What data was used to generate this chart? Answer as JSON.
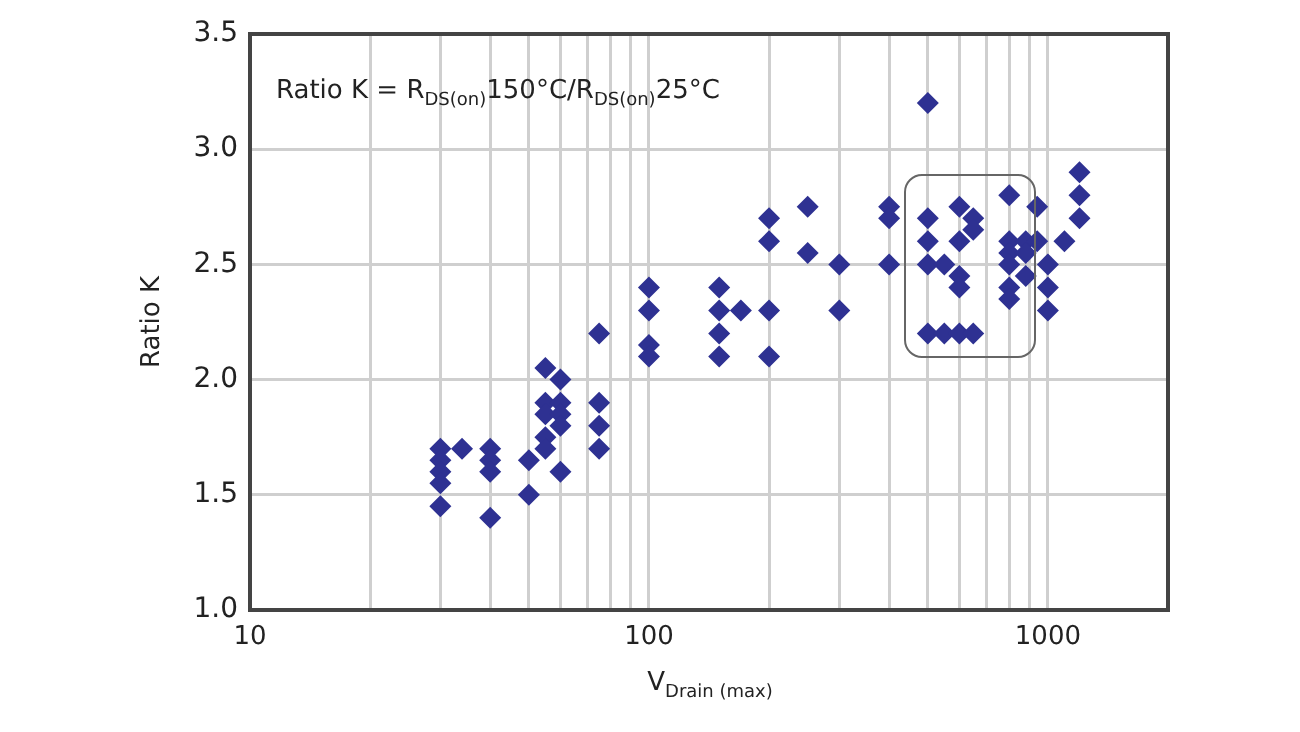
{
  "chart_data": {
    "type": "scatter",
    "xlabel": "V$_{Drain (max)}$",
    "ylabel": "Ratio K",
    "annotations": [
      "Ratio K = R$_{DS(on)}$150°C/R$_{DS(on)}$25°C"
    ],
    "log": "x",
    "grid": true,
    "legend": false,
    "marker": "diamond",
    "xlim": [
      10,
      2000
    ],
    "ylim": [
      1.0,
      3.5
    ],
    "xticks": [
      10,
      {
        "value": 20,
        "label": null
      },
      {
        "value": 30,
        "label": null
      },
      {
        "value": 40,
        "label": null
      },
      {
        "value": 50,
        "label": null
      },
      {
        "value": 60,
        "label": null
      },
      {
        "value": 70,
        "label": null
      },
      {
        "value": 80,
        "label": null
      },
      {
        "value": 90,
        "label": null
      },
      100,
      {
        "value": 200,
        "label": null
      },
      {
        "value": 300,
        "label": null
      },
      {
        "value": 400,
        "label": null
      },
      {
        "value": 500,
        "label": null
      },
      {
        "value": 600,
        "label": null
      },
      {
        "value": 700,
        "label": null
      },
      {
        "value": 800,
        "label": null
      },
      {
        "value": 900,
        "label": null
      },
      1000
    ],
    "yticks": [
      {
        "value": 1.0,
        "label": "1.0"
      },
      1.5,
      {
        "value": 2.0,
        "label": "2.0"
      },
      2.5,
      {
        "value": 3.0,
        "label": "3.0"
      },
      3.5
    ],
    "series": [
      {
        "color": "#2e3192",
        "x": [
          30,
          30,
          30,
          30,
          30,
          34,
          40,
          40,
          40,
          40,
          50,
          50,
          55,
          55,
          55,
          55,
          55,
          60,
          60,
          60,
          60,
          60,
          75,
          75,
          75,
          75,
          100,
          100,
          100,
          100,
          150,
          150,
          150,
          150,
          170,
          200,
          200,
          200,
          200,
          250,
          250,
          300,
          300,
          400,
          400,
          400,
          500,
          500,
          500,
          500,
          500,
          550,
          550,
          600,
          600,
          600,
          600,
          600,
          650,
          650,
          650,
          800,
          800,
          800,
          800,
          800,
          800,
          880,
          880,
          880,
          940,
          940,
          1000,
          1000,
          1000,
          1100,
          1200,
          1200,
          1200
        ],
        "values": [
          1.7,
          1.65,
          1.6,
          1.55,
          1.45,
          1.7,
          1.7,
          1.65,
          1.6,
          1.4,
          1.65,
          1.5,
          2.05,
          1.9,
          1.85,
          1.75,
          1.7,
          2.0,
          1.9,
          1.85,
          1.8,
          1.6,
          2.2,
          1.9,
          1.8,
          1.7,
          2.4,
          2.3,
          2.15,
          2.1,
          2.4,
          2.3,
          2.2,
          2.1,
          2.3,
          2.7,
          2.6,
          2.3,
          2.1,
          2.75,
          2.55,
          2.5,
          2.3,
          2.75,
          2.7,
          2.5,
          3.2,
          2.7,
          2.6,
          2.5,
          2.2,
          2.5,
          2.2,
          2.75,
          2.6,
          2.45,
          2.4,
          2.2,
          2.7,
          2.65,
          2.2,
          2.8,
          2.6,
          2.55,
          2.5,
          2.4,
          2.35,
          2.6,
          2.55,
          2.45,
          2.75,
          2.6,
          2.5,
          2.4,
          2.3,
          2.6,
          2.9,
          2.8,
          2.7
        ]
      }
    ]
  }
}
